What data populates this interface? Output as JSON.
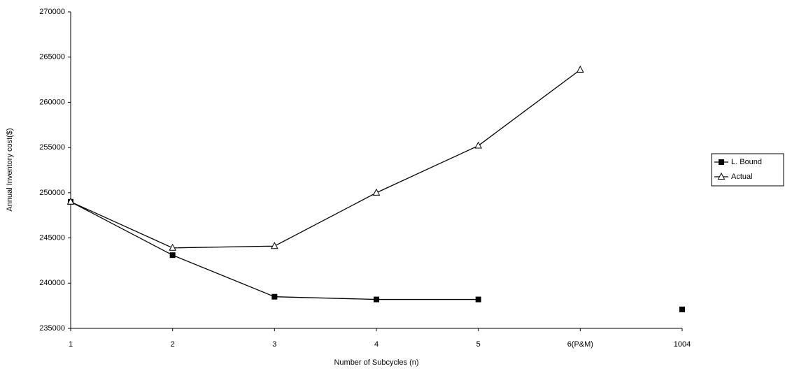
{
  "chart_data": {
    "type": "line",
    "x_label": "Number of Subcycles (n)",
    "y_label": "Annual Inventory cost($)",
    "categories": [
      "1",
      "2",
      "3",
      "4",
      "5",
      "6(P&M)",
      "1004"
    ],
    "series": [
      {
        "name": "L. Bound",
        "color": "#000000",
        "marker": "square",
        "values": [
          249000,
          243100,
          238500,
          238200,
          238200,
          null,
          237100
        ]
      },
      {
        "name": "Actual",
        "color": "#000000",
        "marker": "triangle",
        "values": [
          249000,
          243900,
          244100,
          250000,
          255200,
          263600,
          null
        ]
      }
    ],
    "ylim": [
      235000,
      270000
    ],
    "yticks": [
      235000,
      240000,
      245000,
      250000,
      255000,
      260000,
      265000,
      270000
    ],
    "legend": "right"
  }
}
